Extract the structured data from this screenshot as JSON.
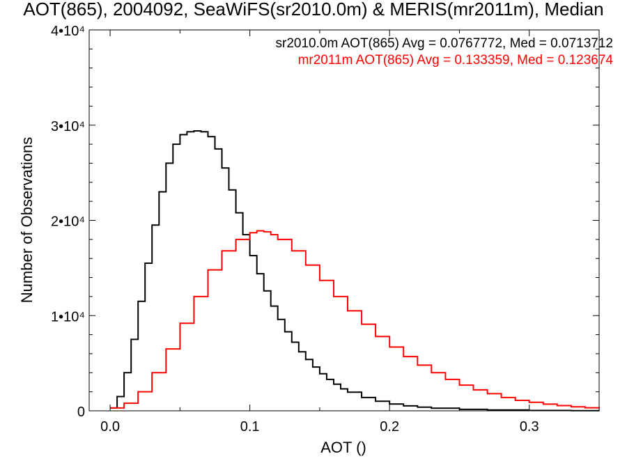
{
  "title": "AOT(865), 2004092, SeaWiFS(sr2010.0m) & MERIS(mr2011m), Median",
  "chart_data": {
    "type": "line",
    "title": "AOT(865), 2004092, SeaWiFS(sr2010.0m) & MERIS(mr2011m), Median",
    "xlabel": "AOT ()",
    "ylabel": "Number of Observations",
    "xlim": [
      -0.015,
      0.35
    ],
    "ylim": [
      0,
      40000
    ],
    "x_ticks": [
      "0.0",
      "0.1",
      "0.2",
      "0.3"
    ],
    "y_ticks": [
      {
        "value": 0,
        "label": "0"
      },
      {
        "value": 10000,
        "label": "1•10⁴"
      },
      {
        "value": 20000,
        "label": "2•10⁴"
      },
      {
        "value": 30000,
        "label": "3•10⁴"
      },
      {
        "value": 40000,
        "label": "4•10⁴"
      }
    ],
    "grid": false,
    "legend_position": "top-right",
    "series": [
      {
        "name": "sr2010.0m AOT(865) Avg = 0.0767772, Med = 0.0713712",
        "color": "#000000",
        "x": [
          0.0,
          0.005,
          0.01,
          0.015,
          0.02,
          0.025,
          0.03,
          0.035,
          0.04,
          0.045,
          0.05,
          0.055,
          0.06,
          0.065,
          0.07,
          0.075,
          0.08,
          0.085,
          0.09,
          0.095,
          0.1,
          0.105,
          0.11,
          0.115,
          0.12,
          0.125,
          0.13,
          0.135,
          0.14,
          0.145,
          0.15,
          0.155,
          0.16,
          0.165,
          0.17,
          0.18,
          0.19,
          0.2,
          0.21,
          0.22,
          0.23,
          0.25,
          0.27,
          0.3,
          0.33,
          0.35
        ],
        "values": [
          300,
          1500,
          4000,
          7500,
          11500,
          15500,
          19500,
          23000,
          26000,
          28000,
          29000,
          29300,
          29400,
          29300,
          28800,
          27500,
          25500,
          23200,
          20800,
          18500,
          16300,
          14400,
          12600,
          11000,
          9600,
          8300,
          7200,
          6200,
          5400,
          4600,
          3900,
          3300,
          2800,
          2300,
          1950,
          1400,
          1000,
          720,
          520,
          380,
          280,
          150,
          90,
          40,
          15,
          5
        ]
      },
      {
        "name": "mr2011m AOT(865) Avg = 0.133359, Med = 0.123674",
        "color": "#ff0000",
        "x": [
          0.0,
          0.01,
          0.02,
          0.03,
          0.04,
          0.05,
          0.06,
          0.07,
          0.08,
          0.09,
          0.1,
          0.105,
          0.11,
          0.115,
          0.12,
          0.13,
          0.14,
          0.15,
          0.16,
          0.17,
          0.18,
          0.19,
          0.2,
          0.21,
          0.22,
          0.23,
          0.24,
          0.25,
          0.26,
          0.27,
          0.28,
          0.29,
          0.3,
          0.31,
          0.32,
          0.33,
          0.34,
          0.35
        ],
        "values": [
          300,
          800,
          2000,
          4000,
          6500,
          9200,
          12000,
          14800,
          16800,
          18000,
          18700,
          18900,
          18800,
          18500,
          18000,
          16800,
          15300,
          13700,
          12000,
          10500,
          9100,
          7800,
          6700,
          5700,
          4800,
          4000,
          3300,
          2700,
          2200,
          1800,
          1400,
          1100,
          900,
          700,
          550,
          420,
          320,
          250
        ]
      }
    ]
  }
}
